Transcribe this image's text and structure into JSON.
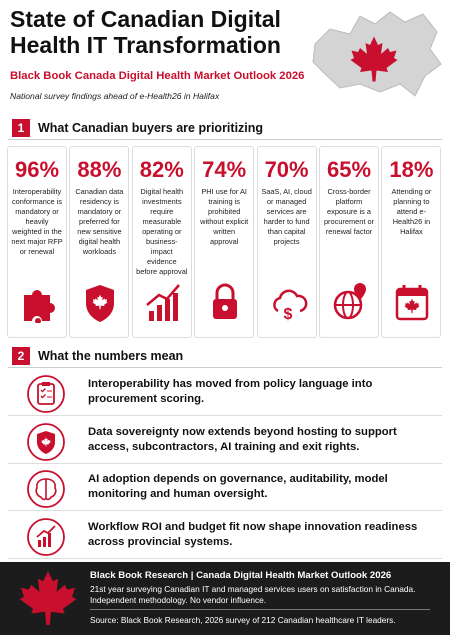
{
  "header": {
    "title": "State of Canadian Digital Health IT Transformation",
    "subtitle": "Black Book Canada Digital Health Market Outlook 2026",
    "tagline": "National survey findings ahead of e-Health26 in Halifax"
  },
  "section1": {
    "number": "1",
    "heading": "What Canadian buyers are prioritizing",
    "cards": [
      {
        "stat": "96%",
        "text": "Interoperability conformance is mandatory or heavily weighted in the next major RFP or renewal"
      },
      {
        "stat": "88%",
        "text": "Canadian data residency is mandatory or preferred for new sensitive digital health workloads"
      },
      {
        "stat": "82%",
        "text": "Digital health investments require measurable operating or business-impact evidence before approval"
      },
      {
        "stat": "74%",
        "text": "PHI use for AI training is prohibited without explicit written approval"
      },
      {
        "stat": "70%",
        "text": "SaaS, AI, cloud or managed services are harder to fund than capital projects"
      },
      {
        "stat": "65%",
        "text": "Cross-border platform exposure is a procurement or renewal factor"
      },
      {
        "stat": "18%",
        "text": "Attending or planning to attend e-Health26 in Halifax"
      }
    ]
  },
  "section2": {
    "number": "2",
    "heading": "What the numbers mean",
    "items": [
      "Interoperability has moved from policy language into procurement scoring.",
      "Data sovereignty now extends beyond hosting to support access, subcontractors, AI training and exit rights.",
      "AI adoption depends on governance, auditability, model monitoring and human oversight.",
      "Workflow ROI and budget fit now shape innovation readiness across provincial systems."
    ]
  },
  "footer": {
    "heading": "Black Book Research | Canada Digital Health Market Outlook 2026",
    "text": "21st year surveying Canadian IT and managed services users on satisfaction in Canada. Independent methodology. No vendor influence.",
    "source": "Source: Black Book Research, 2026 survey of 212 Canadian healthcare IT leaders."
  }
}
